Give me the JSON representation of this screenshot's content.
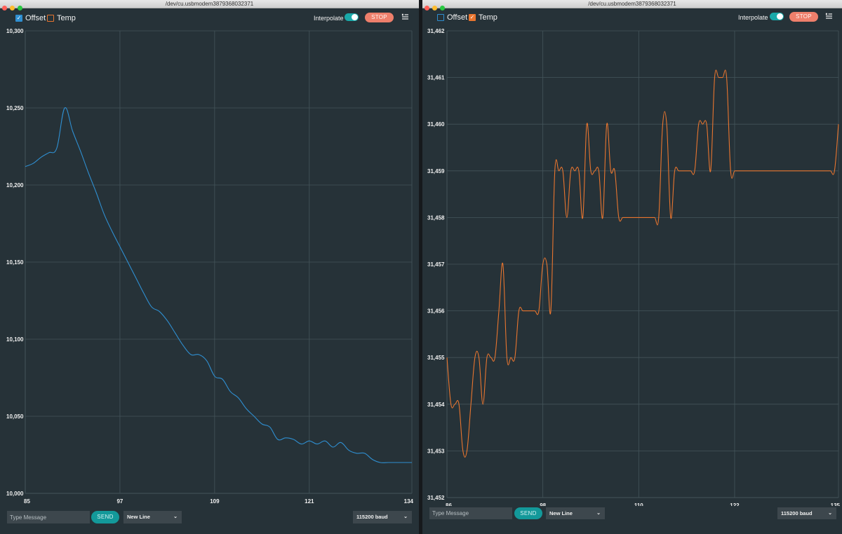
{
  "windows": [
    {
      "id": "left",
      "title": "/dev/cu.usbmodem3879368032371",
      "legend": [
        {
          "label": "Offset",
          "checked": true,
          "color": "#2f8fd1"
        },
        {
          "label": "Temp",
          "checked": false,
          "color": "#e8752f"
        }
      ],
      "interpolate_label": "Interpolate",
      "interpolate_on": true,
      "stop_label": "STOP",
      "message_placeholder": "Type Message",
      "send_label": "SEND",
      "line_ending": "New Line",
      "baud": "115200 baud"
    },
    {
      "id": "right",
      "title": "/dev/cu.usbmodem3879368032371",
      "legend": [
        {
          "label": "Offset",
          "checked": false,
          "color": "#2f8fd1"
        },
        {
          "label": "Temp",
          "checked": true,
          "color": "#e8752f"
        }
      ],
      "interpolate_label": "Interpolate",
      "interpolate_on": true,
      "stop_label": "STOP",
      "message_placeholder": "Type Message",
      "send_label": "SEND",
      "line_ending": "New Line",
      "baud": "115200 baud"
    }
  ],
  "chart_data": [
    {
      "type": "line",
      "window": "left",
      "series": [
        {
          "name": "Offset",
          "color": "#2f8fd1"
        }
      ],
      "x": [
        85,
        86,
        87,
        88,
        89,
        90,
        91,
        92,
        93,
        94,
        95,
        96,
        97,
        98,
        99,
        100,
        101,
        102,
        103,
        104,
        105,
        106,
        107,
        108,
        109,
        110,
        111,
        112,
        113,
        114,
        115,
        116,
        117,
        118,
        119,
        120,
        121,
        122,
        123,
        124,
        125,
        126,
        127,
        128,
        129,
        130,
        131,
        132,
        133,
        134
      ],
      "y": [
        10212,
        10214,
        10218,
        10221,
        10224,
        10250,
        10235,
        10222,
        10208,
        10195,
        10181,
        10170,
        10160,
        10150,
        10140,
        10130,
        10121,
        10118,
        10112,
        10104,
        10096,
        10090,
        10090,
        10086,
        10076,
        10074,
        10066,
        10062,
        10055,
        10050,
        10045,
        10043,
        10035,
        10036,
        10035,
        10032,
        10034,
        10032,
        10034,
        10030,
        10033,
        10028,
        10026,
        10026,
        10022,
        10020,
        10020,
        10020,
        10020,
        10020
      ],
      "xlim": [
        85,
        134
      ],
      "ylim": [
        10000,
        10300
      ],
      "xticks": [
        "85",
        "97",
        "109",
        "121",
        "134"
      ],
      "yticks": [
        "10,000",
        "10,050",
        "10,100",
        "10,150",
        "10,200",
        "10,250",
        "10,300"
      ],
      "grid": true
    },
    {
      "type": "line",
      "window": "right",
      "series": [
        {
          "name": "Temp",
          "color": "#e8752f"
        }
      ],
      "x": [
        86,
        86.5,
        87,
        87.5,
        88,
        88.5,
        89,
        89.5,
        90,
        90.5,
        91,
        91.5,
        92,
        92.5,
        93,
        93.5,
        94,
        94.5,
        95,
        95.5,
        96,
        96.5,
        97,
        97.5,
        98,
        98.5,
        99,
        99.5,
        100,
        100.5,
        101,
        101.5,
        102,
        102.5,
        103,
        103.5,
        104,
        104.5,
        105,
        105.5,
        106,
        106.5,
        107,
        107.5,
        108,
        108.5,
        109,
        109.5,
        110,
        110.5,
        111,
        111.5,
        112,
        112.5,
        113,
        113.5,
        114,
        114.5,
        115,
        115.5,
        116,
        116.5,
        117,
        117.5,
        118,
        118.5,
        119,
        119.5,
        120,
        120.5,
        121,
        121.5,
        122,
        122.5,
        123,
        123.5,
        124,
        124.5,
        125,
        125.5,
        126,
        126.5,
        127,
        127.5,
        128,
        128.5,
        129,
        129.5,
        130,
        130.5,
        131,
        131.5,
        132,
        132.5,
        133,
        133.5,
        134,
        134.5,
        135
      ],
      "y": [
        31455,
        31454,
        31454,
        31454,
        31453,
        31453,
        31454,
        31455,
        31455,
        31454,
        31455,
        31455,
        31455,
        31456,
        31457,
        31455,
        31455,
        31455,
        31456,
        31456,
        31456,
        31456,
        31456,
        31456,
        31457,
        31457,
        31456,
        31459,
        31459,
        31459,
        31458,
        31459,
        31459,
        31459,
        31458,
        31460,
        31459,
        31459,
        31459,
        31458,
        31460,
        31459,
        31459,
        31458,
        31458,
        31458,
        31458,
        31458,
        31458,
        31458,
        31458,
        31458,
        31458,
        31458,
        31460,
        31460,
        31458,
        31459,
        31459,
        31459,
        31459,
        31459,
        31459,
        31460,
        31460,
        31460,
        31459,
        31461,
        31461,
        31461,
        31461,
        31459,
        31459,
        31459,
        31459,
        31459,
        31459,
        31459,
        31459,
        31459,
        31459,
        31459,
        31459,
        31459,
        31459,
        31459,
        31459,
        31459,
        31459,
        31459,
        31459,
        31459,
        31459,
        31459,
        31459,
        31459,
        31459,
        31459,
        31460
      ],
      "xlim": [
        86,
        135
      ],
      "ylim": [
        31452,
        31462
      ],
      "xticks": [
        "86",
        "98",
        "110",
        "122",
        "135"
      ],
      "yticks": [
        "31,452",
        "31,453",
        "31,454",
        "31,455",
        "31,456",
        "31,457",
        "31,458",
        "31,459",
        "31,460",
        "31,461",
        "31,462"
      ],
      "grid": true
    }
  ]
}
